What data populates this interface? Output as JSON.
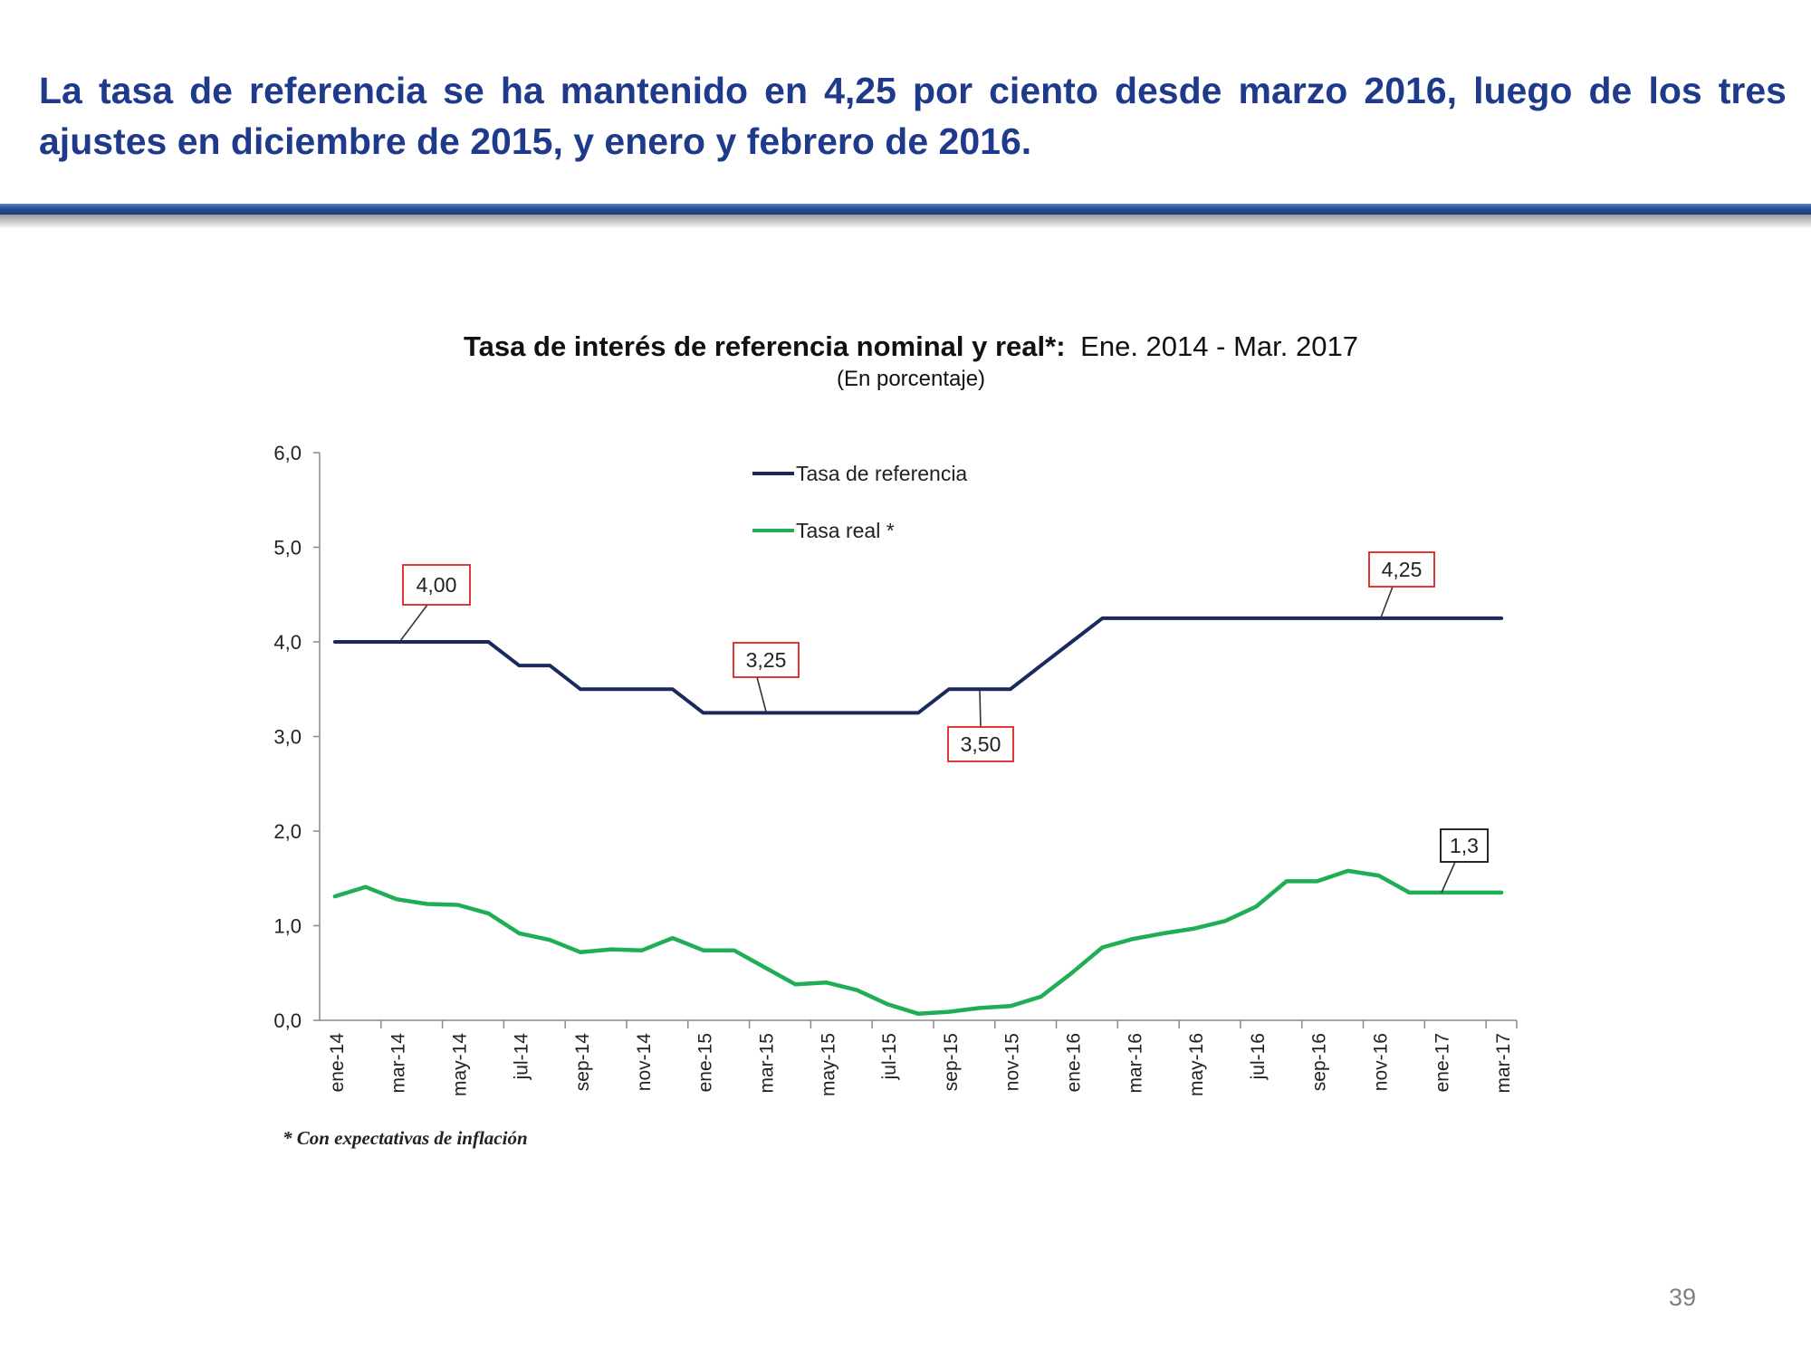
{
  "slide": {
    "headline": "La tasa de referencia se ha mantenido en 4,25 por ciento desde marzo 2016, luego de los tres ajustes en diciembre de 2015, y enero y febrero de 2016.",
    "footnote": "* Con expectativas de inflación",
    "page_number": "39",
    "colors": {
      "headline": "#1f3a8a",
      "rule": "#2a4f96"
    }
  },
  "chart_data": {
    "type": "line",
    "title_bold": "Tasa de interés de referencia nominal y real*:",
    "title_rest": "Ene. 2014 - Mar. 2017",
    "subtitle": "(En porcentaje)",
    "ylim": [
      0,
      6
    ],
    "yticks": [
      "0,0",
      "1,0",
      "2,0",
      "3,0",
      "4,0",
      "5,0",
      "6,0"
    ],
    "grid": false,
    "legend_position": "top-center",
    "x_labels": [
      "ene-14",
      "mar-14",
      "may-14",
      "jul-14",
      "sep-14",
      "nov-14",
      "ene-15",
      "mar-15",
      "may-15",
      "jul-15",
      "sep-15",
      "nov-15",
      "ene-16",
      "mar-16",
      "may-16",
      "jul-16",
      "sep-16",
      "nov-16",
      "ene-17",
      "mar-17"
    ],
    "series": [
      {
        "name": "Tasa de referencia",
        "color": "#1b2a5e",
        "values": [
          4.0,
          4.0,
          4.0,
          4.0,
          4.0,
          4.0,
          3.75,
          3.75,
          3.5,
          3.5,
          3.5,
          3.5,
          3.25,
          3.25,
          3.25,
          3.25,
          3.25,
          3.25,
          3.25,
          3.25,
          3.5,
          3.5,
          3.5,
          3.75,
          4.0,
          4.25,
          4.25,
          4.25,
          4.25,
          4.25,
          4.25,
          4.25,
          4.25,
          4.25,
          4.25,
          4.25,
          4.25,
          4.25,
          4.25
        ]
      },
      {
        "name": "Tasa real *",
        "color": "#1fae55",
        "values": [
          1.31,
          1.41,
          1.28,
          1.23,
          1.22,
          1.13,
          0.92,
          0.85,
          0.72,
          0.75,
          0.74,
          0.87,
          0.74,
          0.74,
          0.56,
          0.38,
          0.4,
          0.32,
          0.17,
          0.07,
          0.09,
          0.13,
          0.15,
          0.25,
          0.5,
          0.77,
          0.86,
          0.92,
          0.97,
          1.05,
          1.2,
          1.47,
          1.47,
          1.58,
          1.53,
          1.35,
          1.35,
          1.35,
          1.35
        ]
      }
    ],
    "annotations": [
      {
        "label": "4,00",
        "series": 0,
        "index": 3,
        "border": "#e02020"
      },
      {
        "label": "3,25",
        "series": 0,
        "index": 14,
        "border": "#e02020"
      },
      {
        "label": "3,50",
        "series": 0,
        "index": 21,
        "border": "#e02020"
      },
      {
        "label": "4,25",
        "series": 0,
        "index": 34,
        "border": "#e02020"
      },
      {
        "label": "1,3",
        "series": 1,
        "index": 36,
        "border": "#111111"
      }
    ]
  }
}
